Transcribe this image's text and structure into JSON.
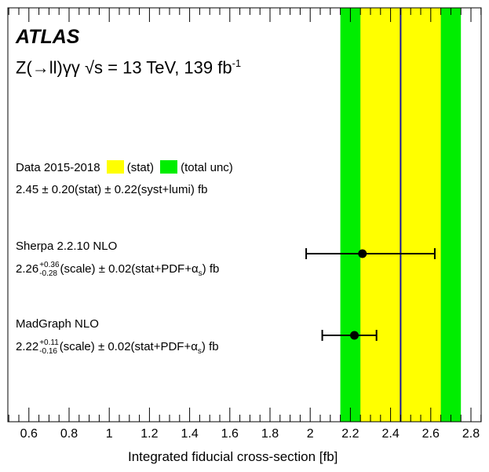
{
  "chart_data": {
    "type": "scatter",
    "xlabel": "Integrated fiducial cross-section [fb]",
    "ylabel": "",
    "xlim": [
      0.5,
      2.85
    ],
    "x_ticks": [
      "0.6",
      "0.8",
      "1",
      "1.2",
      "1.4",
      "1.6",
      "1.8",
      "2",
      "2.2",
      "2.4",
      "2.6",
      "2.8"
    ],
    "grid": false,
    "experiment": "ATLAS",
    "process": "Z(→ll)γγ  √s = 13 TeV, 139 fb",
    "lumi_exp": "-1",
    "data": {
      "label": "Data 2015-2018",
      "stat_label": "(stat)",
      "total_label": "(total unc)",
      "value": 2.45,
      "stat": 0.2,
      "total": 0.3,
      "text_main": "2.45",
      "text_rest": "± 0.20(stat) ± 0.22(syst+lumi) fb",
      "stat_color": "#ffff00",
      "total_color": "#00ee00",
      "line_color": "#1a1a99"
    },
    "predictions": [
      {
        "name": "Sherpa 2.2.10 NLO",
        "value": 2.26,
        "err_up": 0.36,
        "err_down": 0.28,
        "text_value": "2.26",
        "text_up": "+0.36",
        "text_down": "-0.28",
        "text_mid": "(scale) ± 0.02(stat+PDF+α",
        "text_sub": "s",
        "text_end": ") fb"
      },
      {
        "name": "MadGraph NLO",
        "value": 2.22,
        "err_up": 0.11,
        "err_down": 0.16,
        "text_value": "2.22",
        "text_up": "+0.11",
        "text_down": "-0.16",
        "text_mid": "(scale) ± 0.02(stat+PDF+α",
        "text_sub": "s",
        "text_end": ") fb"
      }
    ]
  }
}
